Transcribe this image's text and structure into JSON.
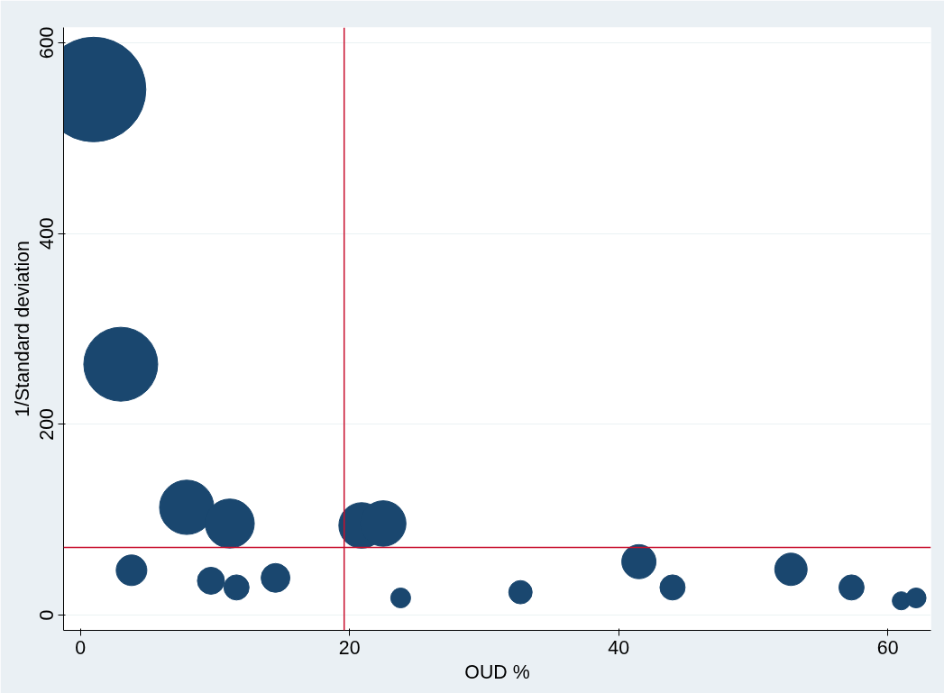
{
  "chart_data": {
    "type": "bubble",
    "xlabel": "OUD %",
    "ylabel": "1/Standard deviation",
    "x": [
      0.98,
      3.0,
      7.9,
      11.1,
      20.9,
      22.5,
      3.8,
      9.7,
      11.6,
      14.5,
      23.8,
      32.7,
      41.5,
      44.0,
      52.8,
      57.3,
      61.0,
      62.1
    ],
    "series": [
      {
        "color": "#1a476f",
        "values": [
          551,
          263,
          113,
          96,
          94,
          96,
          47,
          36,
          29,
          39,
          18,
          24,
          56,
          29,
          48,
          29,
          15,
          18
        ],
        "sizes": [
          1,
          0.5,
          0.27,
          0.22,
          0.19,
          0.19,
          0.086,
          0.067,
          0.058,
          0.076,
          0.036,
          0.05,
          0.107,
          0.058,
          0.096,
          0.058,
          0.03,
          0.036
        ]
      }
    ],
    "xlim": [
      -1.25,
      63.2
    ],
    "ylim": [
      -16,
      616
    ],
    "xticks": [
      0,
      20,
      40,
      60
    ],
    "yticks": [
      0,
      200,
      400,
      600
    ],
    "ref_lines": [
      {
        "axis": "x",
        "value": 19.6,
        "color": "#c8102e"
      },
      {
        "axis": "y",
        "value": 71,
        "color": "#c8102e"
      }
    ],
    "grid": "y"
  }
}
